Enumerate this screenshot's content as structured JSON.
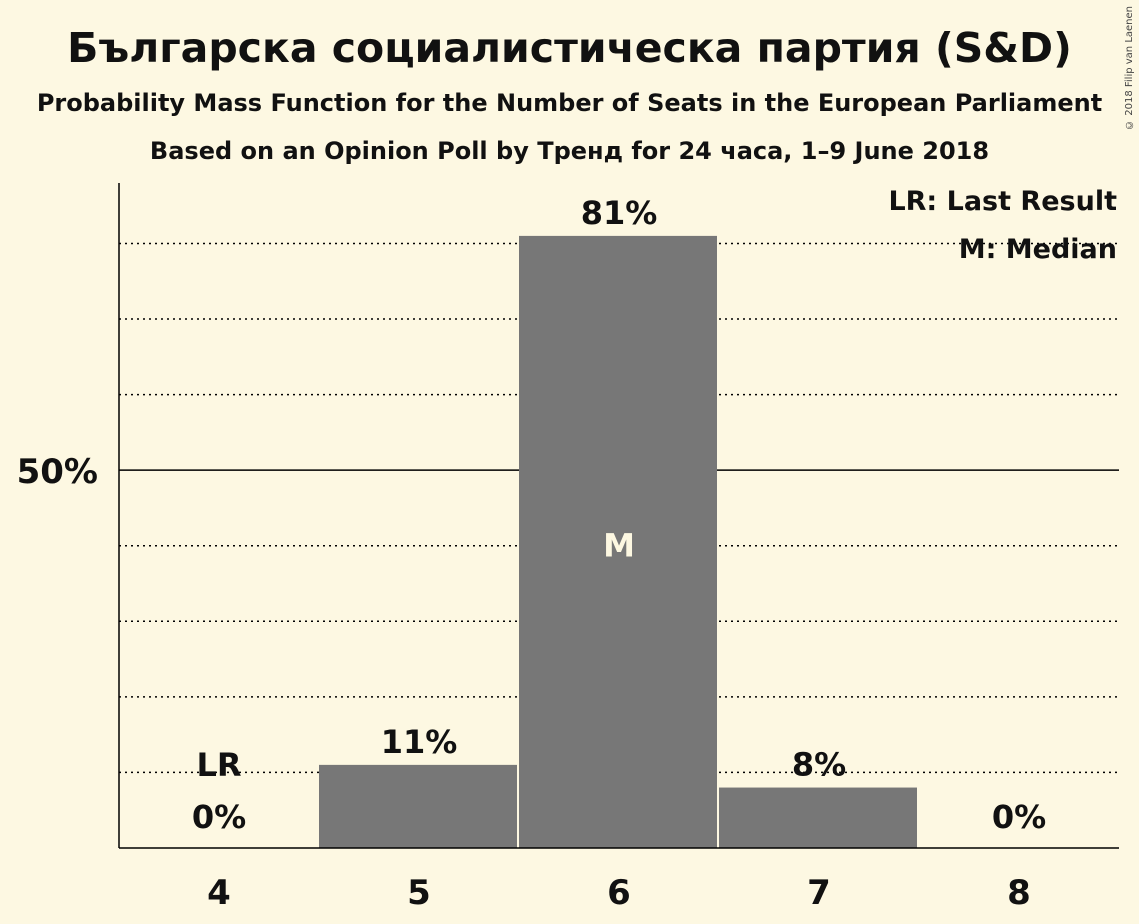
{
  "copyright": "© 2018 Filip van Laenen",
  "chart_data": {
    "type": "bar",
    "title": "Българска социалистическа партия (S&D)",
    "subtitle": "Probability Mass Function for the Number of Seats in the European Parliament",
    "subtitle2": "Based on an Opinion Poll by Тренд for 24 часа, 1–9 June 2018",
    "categories": [
      "4",
      "5",
      "6",
      "7",
      "8"
    ],
    "values": [
      0,
      11,
      81,
      8,
      0
    ],
    "value_labels": [
      "0%",
      "11%",
      "81%",
      "8%",
      "0%"
    ],
    "ylim": [
      0,
      88
    ],
    "yticks": [
      {
        "value": 50,
        "label": "50%"
      }
    ],
    "gridlines": [
      10,
      20,
      30,
      40,
      50,
      60,
      70,
      80
    ],
    "bar_color": "#777777",
    "background": "#fdf8e2",
    "markers": [
      {
        "category": "4",
        "text": "LR",
        "value": 11
      },
      {
        "category": "6",
        "text": "M",
        "value": 40
      }
    ],
    "legend": [
      "LR: Last Result",
      "M: Median"
    ],
    "legend_position": "top-right"
  }
}
